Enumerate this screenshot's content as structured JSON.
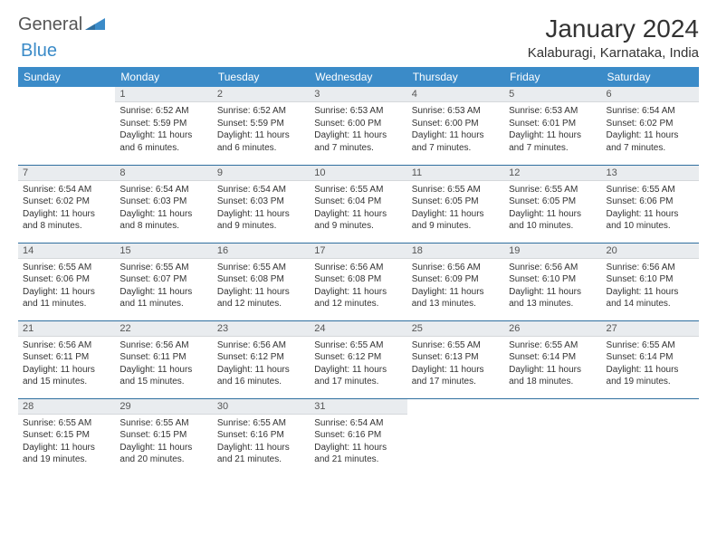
{
  "brand": {
    "part1": "General",
    "part2": "Blue"
  },
  "colors": {
    "accent": "#3b8bc8",
    "header_bg": "#3b8bc8",
    "daynum_bg": "#e9ecef",
    "row_divider": "#2f6f9f",
    "text": "#333333",
    "background": "#ffffff"
  },
  "title": "January 2024",
  "location": "Kalaburagi, Karnataka, India",
  "typography": {
    "title_fontsize": 28,
    "location_fontsize": 15,
    "dayheader_fontsize": 12,
    "daynum_fontsize": 11,
    "cell_fontsize": 10
  },
  "day_headers": [
    "Sunday",
    "Monday",
    "Tuesday",
    "Wednesday",
    "Thursday",
    "Friday",
    "Saturday"
  ],
  "structure": {
    "type": "calendar-table",
    "cols": 7,
    "rows": 5,
    "first_day_col": 1
  },
  "days": [
    {
      "n": 1,
      "sunrise": "6:52 AM",
      "sunset": "5:59 PM",
      "daylight": "11 hours and 6 minutes."
    },
    {
      "n": 2,
      "sunrise": "6:52 AM",
      "sunset": "5:59 PM",
      "daylight": "11 hours and 6 minutes."
    },
    {
      "n": 3,
      "sunrise": "6:53 AM",
      "sunset": "6:00 PM",
      "daylight": "11 hours and 7 minutes."
    },
    {
      "n": 4,
      "sunrise": "6:53 AM",
      "sunset": "6:00 PM",
      "daylight": "11 hours and 7 minutes."
    },
    {
      "n": 5,
      "sunrise": "6:53 AM",
      "sunset": "6:01 PM",
      "daylight": "11 hours and 7 minutes."
    },
    {
      "n": 6,
      "sunrise": "6:54 AM",
      "sunset": "6:02 PM",
      "daylight": "11 hours and 7 minutes."
    },
    {
      "n": 7,
      "sunrise": "6:54 AM",
      "sunset": "6:02 PM",
      "daylight": "11 hours and 8 minutes."
    },
    {
      "n": 8,
      "sunrise": "6:54 AM",
      "sunset": "6:03 PM",
      "daylight": "11 hours and 8 minutes."
    },
    {
      "n": 9,
      "sunrise": "6:54 AM",
      "sunset": "6:03 PM",
      "daylight": "11 hours and 9 minutes."
    },
    {
      "n": 10,
      "sunrise": "6:55 AM",
      "sunset": "6:04 PM",
      "daylight": "11 hours and 9 minutes."
    },
    {
      "n": 11,
      "sunrise": "6:55 AM",
      "sunset": "6:05 PM",
      "daylight": "11 hours and 9 minutes."
    },
    {
      "n": 12,
      "sunrise": "6:55 AM",
      "sunset": "6:05 PM",
      "daylight": "11 hours and 10 minutes."
    },
    {
      "n": 13,
      "sunrise": "6:55 AM",
      "sunset": "6:06 PM",
      "daylight": "11 hours and 10 minutes."
    },
    {
      "n": 14,
      "sunrise": "6:55 AM",
      "sunset": "6:06 PM",
      "daylight": "11 hours and 11 minutes."
    },
    {
      "n": 15,
      "sunrise": "6:55 AM",
      "sunset": "6:07 PM",
      "daylight": "11 hours and 11 minutes."
    },
    {
      "n": 16,
      "sunrise": "6:55 AM",
      "sunset": "6:08 PM",
      "daylight": "11 hours and 12 minutes."
    },
    {
      "n": 17,
      "sunrise": "6:56 AM",
      "sunset": "6:08 PM",
      "daylight": "11 hours and 12 minutes."
    },
    {
      "n": 18,
      "sunrise": "6:56 AM",
      "sunset": "6:09 PM",
      "daylight": "11 hours and 13 minutes."
    },
    {
      "n": 19,
      "sunrise": "6:56 AM",
      "sunset": "6:10 PM",
      "daylight": "11 hours and 13 minutes."
    },
    {
      "n": 20,
      "sunrise": "6:56 AM",
      "sunset": "6:10 PM",
      "daylight": "11 hours and 14 minutes."
    },
    {
      "n": 21,
      "sunrise": "6:56 AM",
      "sunset": "6:11 PM",
      "daylight": "11 hours and 15 minutes."
    },
    {
      "n": 22,
      "sunrise": "6:56 AM",
      "sunset": "6:11 PM",
      "daylight": "11 hours and 15 minutes."
    },
    {
      "n": 23,
      "sunrise": "6:56 AM",
      "sunset": "6:12 PM",
      "daylight": "11 hours and 16 minutes."
    },
    {
      "n": 24,
      "sunrise": "6:55 AM",
      "sunset": "6:12 PM",
      "daylight": "11 hours and 17 minutes."
    },
    {
      "n": 25,
      "sunrise": "6:55 AM",
      "sunset": "6:13 PM",
      "daylight": "11 hours and 17 minutes."
    },
    {
      "n": 26,
      "sunrise": "6:55 AM",
      "sunset": "6:14 PM",
      "daylight": "11 hours and 18 minutes."
    },
    {
      "n": 27,
      "sunrise": "6:55 AM",
      "sunset": "6:14 PM",
      "daylight": "11 hours and 19 minutes."
    },
    {
      "n": 28,
      "sunrise": "6:55 AM",
      "sunset": "6:15 PM",
      "daylight": "11 hours and 19 minutes."
    },
    {
      "n": 29,
      "sunrise": "6:55 AM",
      "sunset": "6:15 PM",
      "daylight": "11 hours and 20 minutes."
    },
    {
      "n": 30,
      "sunrise": "6:55 AM",
      "sunset": "6:16 PM",
      "daylight": "11 hours and 21 minutes."
    },
    {
      "n": 31,
      "sunrise": "6:54 AM",
      "sunset": "6:16 PM",
      "daylight": "11 hours and 21 minutes."
    }
  ],
  "labels": {
    "sunrise": "Sunrise:",
    "sunset": "Sunset:",
    "daylight": "Daylight:"
  }
}
